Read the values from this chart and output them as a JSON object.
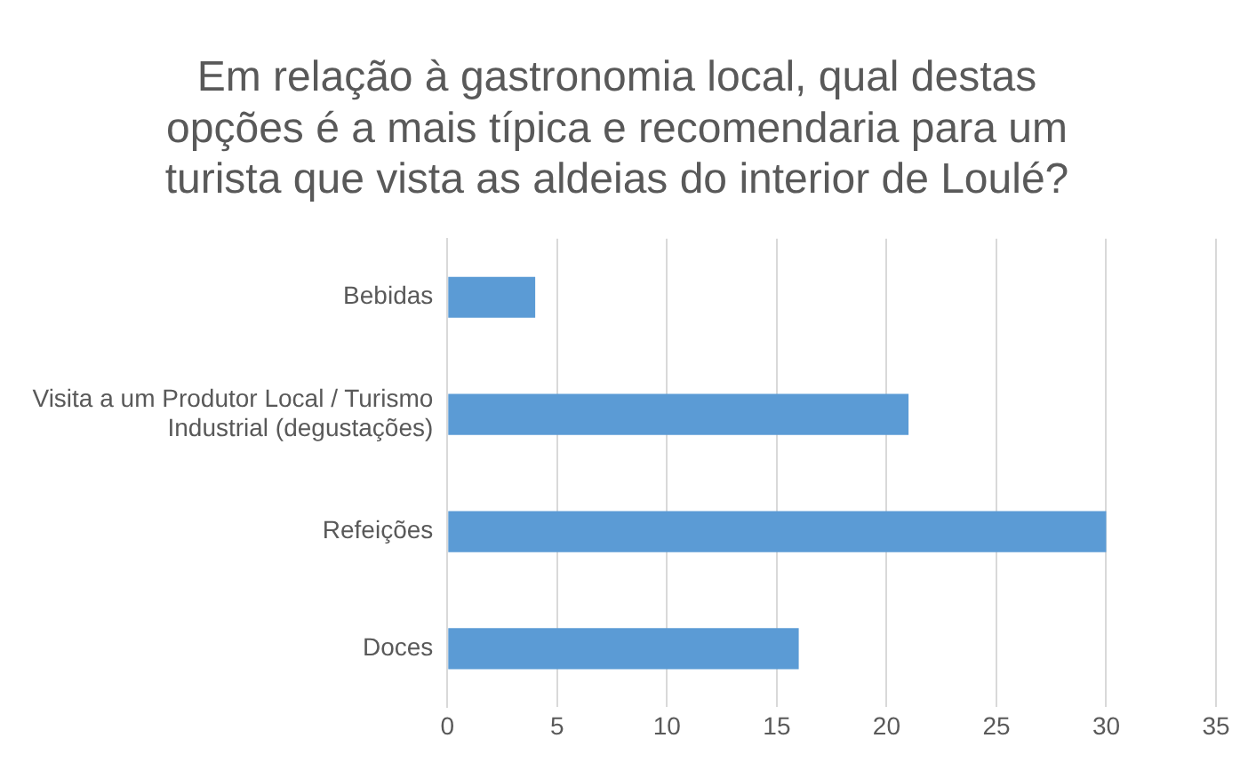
{
  "chart_data": {
    "type": "bar",
    "orientation": "horizontal",
    "title": "Em relação à gastronomia local, qual destas opções é a mais típica e recomendaria para um turista que vista as aldeias do interior de Loulé?",
    "categories": [
      "Bebidas",
      "Visita a um Produtor Local / Turismo Industrial (degustações)",
      "Refeições",
      "Doces"
    ],
    "values": [
      4,
      21,
      30,
      16
    ],
    "color": "#5b9bd5",
    "xlim": [
      0,
      35
    ],
    "xticks": [
      0,
      5,
      10,
      15,
      20,
      25,
      30,
      35
    ],
    "grid": "x",
    "legend": false
  }
}
